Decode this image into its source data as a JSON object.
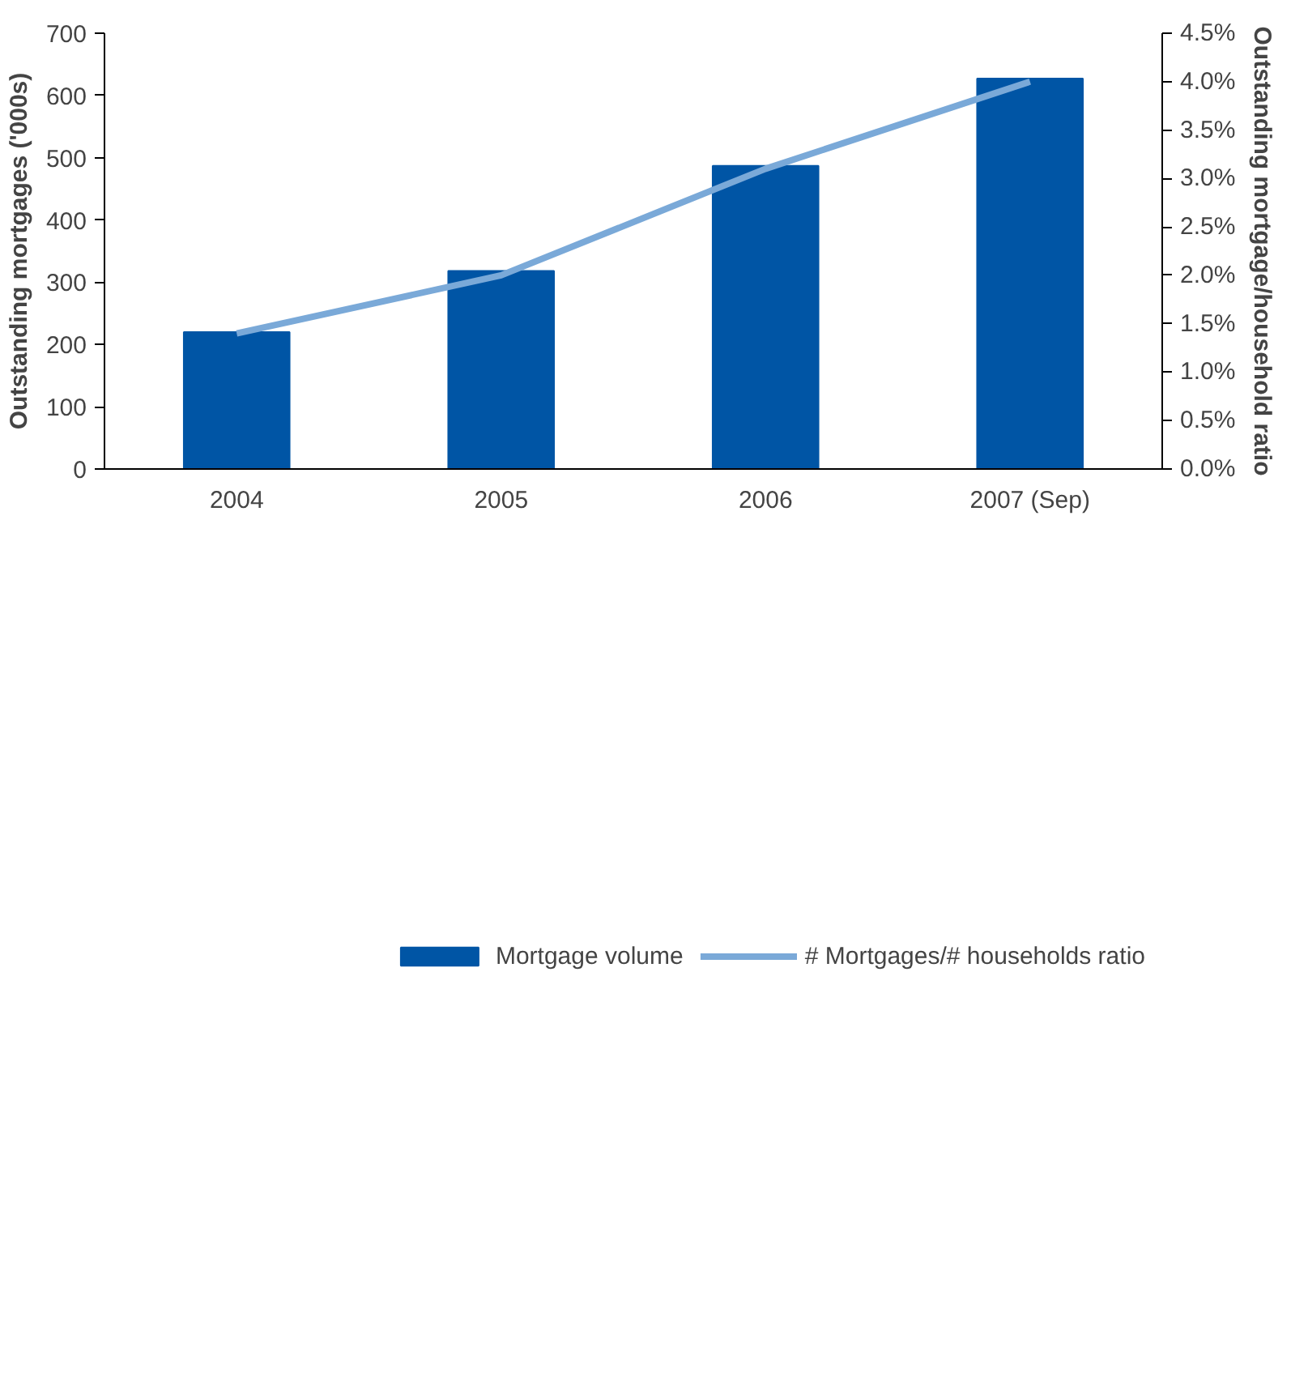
{
  "chart_data": {
    "type": "bar",
    "categories": [
      "2004",
      "2005",
      "2006",
      "2007 (Sep)"
    ],
    "series": [
      {
        "name": "Mortgage volume",
        "color": "#0055a5",
        "values": [
          220,
          318,
          487,
          627
        ]
      },
      {
        "name": "# Mortgages/# households ratio",
        "color": "#7aa9d8",
        "type": "line",
        "axis": "y2",
        "values": [
          1.4,
          2.0,
          3.1,
          4.0
        ]
      }
    ],
    "ylabel": "Outstanding mortgages ('000s)",
    "y2label": "Outstanding mortgage/household ratio",
    "ylim": [
      0,
      700
    ],
    "yticks": [
      0,
      100,
      200,
      300,
      400,
      500,
      600,
      700
    ],
    "y2lim": [
      0,
      4.5
    ],
    "y2ticks": [
      {
        "value": 0,
        "label": "0.0%"
      },
      {
        "value": 0.5,
        "label": "0.5%"
      },
      {
        "value": 1,
        "label": "1.0%"
      },
      {
        "value": 1.5,
        "label": "1.5%"
      },
      {
        "value": 2,
        "label": "2.0%"
      },
      {
        "value": 2.5,
        "label": "2.5%"
      },
      {
        "value": 3,
        "label": "3.0%"
      },
      {
        "value": 3.5,
        "label": "3.5%"
      },
      {
        "value": 4,
        "label": "4.0%"
      },
      {
        "value": 4.5,
        "label": "4.5%"
      }
    ],
    "legend": "bottom",
    "grid": false
  }
}
